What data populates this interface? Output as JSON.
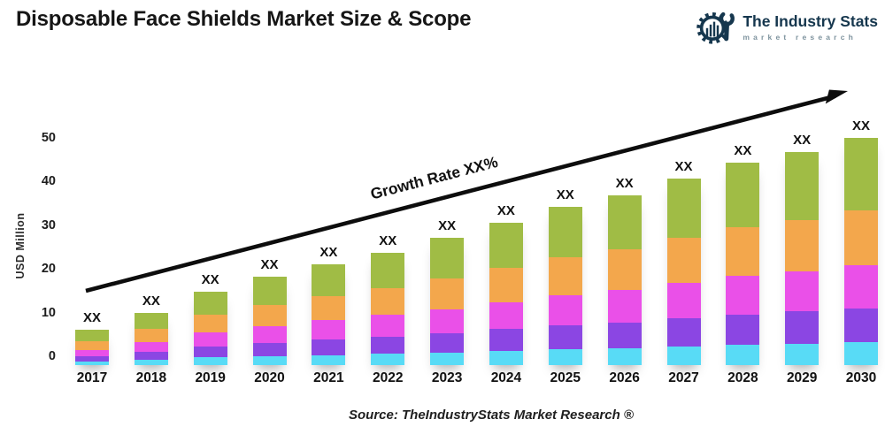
{
  "header": {
    "title": "Disposable Face Shields Market Size & Scope",
    "logo": {
      "name": "The Industry Stats",
      "tagline": "market research",
      "color": "#16374e"
    }
  },
  "footer": {
    "source": "Source: TheIndustryStats Market Research ®"
  },
  "chart_data": {
    "type": "bar",
    "stacked": true,
    "title": "Disposable Face Shields Market Size & Scope",
    "xlabel": "",
    "ylabel": "USD Million",
    "yticks": [
      0,
      10,
      20,
      30,
      40,
      50
    ],
    "ylim": [
      -2,
      55
    ],
    "grid": false,
    "legend": false,
    "categories": [
      "2017",
      "2018",
      "2019",
      "2020",
      "2021",
      "2022",
      "2023",
      "2024",
      "2025",
      "2026",
      "2027",
      "2028",
      "2029",
      "2030"
    ],
    "bar_value_label": "XX",
    "growth_annotation": "Growth Rate XX%",
    "baseline": -2,
    "series": [
      {
        "name": "cyan segment",
        "color": "#58dbf6",
        "values": [
          0.8,
          1.2,
          1.7,
          2.0,
          2.3,
          2.6,
          2.9,
          3.3,
          3.6,
          3.9,
          4.3,
          4.6,
          4.9,
          5.2
        ]
      },
      {
        "name": "purple segment",
        "color": "#8b46e3",
        "values": [
          1.2,
          1.8,
          2.5,
          3.0,
          3.5,
          3.9,
          4.4,
          4.9,
          5.4,
          5.8,
          6.4,
          6.9,
          7.3,
          7.8
        ]
      },
      {
        "name": "magenta segment",
        "color": "#ea50e8",
        "values": [
          1.5,
          2.3,
          3.2,
          3.8,
          4.4,
          4.9,
          5.5,
          6.2,
          6.9,
          7.4,
          8.1,
          8.8,
          9.2,
          9.9
        ]
      },
      {
        "name": "orange segment",
        "color": "#f3a74c",
        "values": [
          1.9,
          2.9,
          4.0,
          4.9,
          5.5,
          6.2,
          7.0,
          7.8,
          8.7,
          9.3,
          10.3,
          11.1,
          11.7,
          12.5
        ]
      },
      {
        "name": "green segment",
        "color": "#a0bc45",
        "values": [
          2.6,
          3.8,
          5.3,
          6.5,
          7.3,
          8.1,
          9.3,
          10.3,
          11.6,
          12.3,
          13.6,
          14.9,
          15.5,
          16.6
        ]
      }
    ],
    "stack_top_values": [
      6,
      10,
      14.7,
      18.2,
      21,
      23.7,
      27.1,
      30.5,
      34.2,
      36.7,
      40.7,
      44.3,
      46.6,
      50
    ],
    "arrow_color": "#0d0d0d"
  }
}
